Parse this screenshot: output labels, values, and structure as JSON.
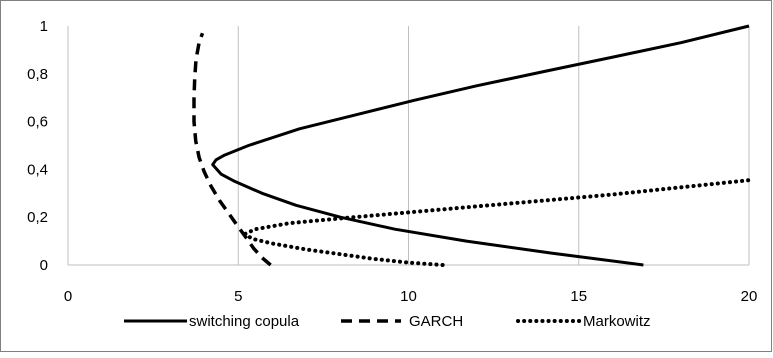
{
  "chart_data": {
    "type": "line",
    "title": "",
    "xlabel": "",
    "ylabel": "",
    "xlim": [
      0,
      20
    ],
    "ylim": [
      0,
      1
    ],
    "x_ticks": [
      0,
      5,
      10,
      15,
      20
    ],
    "y_ticks": [
      0,
      0.2,
      0.4,
      0.6,
      0.8,
      1
    ],
    "x_tick_labels": [
      "0",
      "5",
      "10",
      "15",
      "20"
    ],
    "y_tick_labels": [
      "0",
      "0,2",
      "0,4",
      "0,6",
      "0,8",
      "1"
    ],
    "grid": "vertical",
    "legend_position": "bottom",
    "series": [
      {
        "name": "switching copula",
        "style": "solid",
        "color": "#000000",
        "points": [
          [
            16.9,
            0.0
          ],
          [
            14.2,
            0.05
          ],
          [
            11.7,
            0.1
          ],
          [
            9.6,
            0.15
          ],
          [
            8.0,
            0.2
          ],
          [
            6.7,
            0.25
          ],
          [
            5.7,
            0.3
          ],
          [
            4.9,
            0.35
          ],
          [
            4.5,
            0.38
          ],
          [
            4.25,
            0.42
          ],
          [
            4.35,
            0.44
          ],
          [
            4.6,
            0.46
          ],
          [
            5.3,
            0.5
          ],
          [
            6.8,
            0.57
          ],
          [
            8.5,
            0.63
          ],
          [
            10.2,
            0.69
          ],
          [
            12.0,
            0.75
          ],
          [
            14.0,
            0.81
          ],
          [
            16.0,
            0.87
          ],
          [
            18.0,
            0.93
          ],
          [
            20.0,
            1.0
          ]
        ]
      },
      {
        "name": "GARCH",
        "style": "dashed",
        "color": "#000000",
        "points": [
          [
            5.95,
            0.0
          ],
          [
            5.7,
            0.03
          ],
          [
            5.45,
            0.07
          ],
          [
            5.2,
            0.12
          ],
          [
            4.95,
            0.17
          ],
          [
            4.7,
            0.22
          ],
          [
            4.45,
            0.27
          ],
          [
            4.2,
            0.33
          ],
          [
            4.0,
            0.39
          ],
          [
            3.85,
            0.45
          ],
          [
            3.75,
            0.52
          ],
          [
            3.7,
            0.6
          ],
          [
            3.7,
            0.7
          ],
          [
            3.72,
            0.78
          ],
          [
            3.76,
            0.86
          ],
          [
            3.85,
            0.93
          ],
          [
            3.95,
            0.97
          ]
        ]
      },
      {
        "name": "Markowitz",
        "style": "dotted",
        "color": "#000000",
        "points": [
          [
            11.0,
            0.0
          ],
          [
            10.0,
            0.01
          ],
          [
            9.0,
            0.025
          ],
          [
            8.0,
            0.045
          ],
          [
            7.0,
            0.065
          ],
          [
            6.0,
            0.09
          ],
          [
            5.4,
            0.11
          ],
          [
            5.2,
            0.13
          ],
          [
            5.5,
            0.15
          ],
          [
            6.5,
            0.175
          ],
          [
            8.0,
            0.195
          ],
          [
            10.0,
            0.22
          ],
          [
            12.0,
            0.245
          ],
          [
            14.0,
            0.27
          ],
          [
            16.0,
            0.295
          ],
          [
            18.0,
            0.325
          ],
          [
            20.0,
            0.355
          ]
        ]
      }
    ]
  }
}
